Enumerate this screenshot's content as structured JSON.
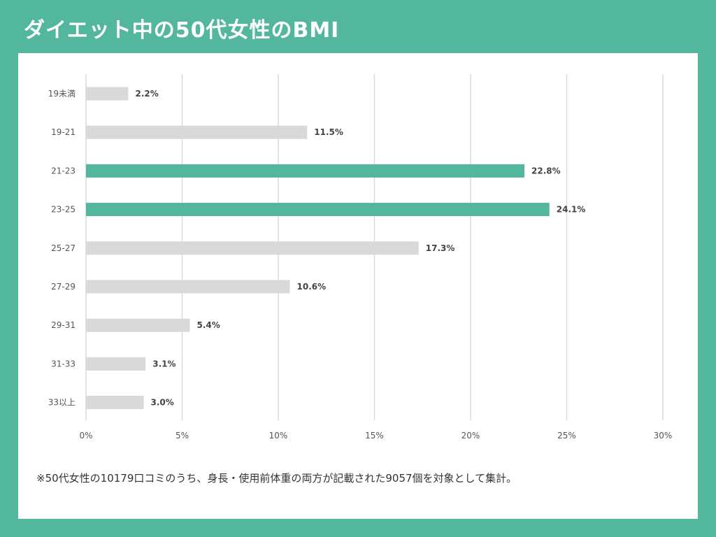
{
  "header": {
    "title": "ダイエット中の50代女性のBMI"
  },
  "colors": {
    "background": "#52b79c",
    "highlight_bar": "#52b79c",
    "default_bar": "#d9d9d9",
    "grid": "#d9d9d9"
  },
  "chart_data": {
    "type": "bar",
    "orientation": "horizontal",
    "title": "ダイエット中の50代女性のBMI",
    "categories": [
      "19未満",
      "19-21",
      "21-23",
      "23-25",
      "25-27",
      "27-29",
      "29-31",
      "31-33",
      "33以上"
    ],
    "values": [
      2.2,
      11.5,
      22.8,
      24.1,
      17.3,
      10.6,
      5.4,
      3.1,
      3.0
    ],
    "value_labels": [
      "2.2%",
      "11.5%",
      "22.8%",
      "24.1%",
      "17.3%",
      "10.6%",
      "5.4%",
      "3.1%",
      "3.0%"
    ],
    "highlighted": [
      false,
      false,
      true,
      true,
      false,
      false,
      false,
      false,
      false
    ],
    "xlim": [
      0,
      30
    ],
    "xticks": [
      0,
      5,
      10,
      15,
      20,
      25,
      30
    ],
    "xtick_labels": [
      "0%",
      "5%",
      "10%",
      "15%",
      "20%",
      "25%",
      "30%"
    ],
    "xlabel": "",
    "ylabel": "",
    "grid": "vertical",
    "legend": "none"
  },
  "footnote": "※50代女性の10179口コミのうち、身長・使用前体重の両方が記載された9057個を対象として集計。"
}
